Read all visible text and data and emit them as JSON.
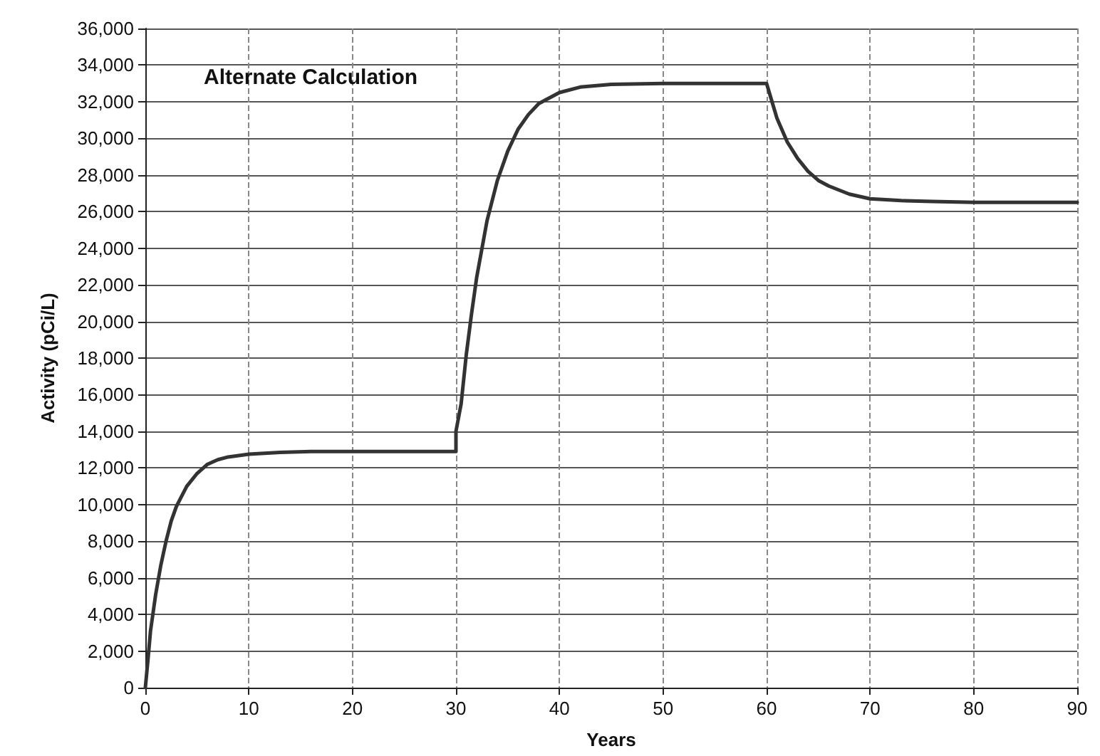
{
  "chart_data": {
    "type": "line",
    "title": "Alternate Calculation",
    "xlabel": "Years",
    "ylabel": "Activity (pCi/L)",
    "x": [
      0,
      0.25,
      0.5,
      1,
      1.5,
      2,
      2.5,
      3,
      4,
      5,
      6,
      7,
      8,
      10,
      13,
      16,
      20,
      25,
      30,
      30,
      30.5,
      31,
      31.5,
      32,
      33,
      34,
      35,
      36,
      37,
      38,
      40,
      42,
      45,
      50,
      55,
      60,
      61,
      62,
      63,
      64,
      65,
      66,
      68,
      70,
      73,
      76,
      80,
      85,
      90
    ],
    "series": [
      {
        "color": "#333333",
        "values": [
          0,
          1500,
          3100,
          5100,
          6700,
          8000,
          9100,
          9900,
          11000,
          11700,
          12200,
          12450,
          12600,
          12750,
          12850,
          12900,
          12900,
          12900,
          12900,
          14000,
          15500,
          18200,
          20400,
          22400,
          25500,
          27700,
          29300,
          30500,
          31300,
          31900,
          32500,
          32800,
          32950,
          33000,
          33000,
          33000,
          31100,
          29800,
          28900,
          28200,
          27700,
          27400,
          26950,
          26700,
          26600,
          26550,
          26500,
          26500,
          26500
        ]
      }
    ],
    "xlim": [
      0,
      90
    ],
    "xticks": [
      0,
      10,
      20,
      30,
      40,
      50,
      60,
      70,
      80,
      90
    ],
    "ylim": [
      0,
      36000
    ],
    "yticks": [
      0,
      {
        "value": 2000,
        "label": "2,000"
      },
      {
        "value": 4000,
        "label": "4,000"
      },
      {
        "value": 6000,
        "label": "6,000"
      },
      {
        "value": 8000,
        "label": "8,000"
      },
      {
        "value": 10000,
        "label": "10,000"
      },
      {
        "value": 12000,
        "label": "12,000"
      },
      {
        "value": 14000,
        "label": "14,000"
      },
      {
        "value": 16000,
        "label": "16,000"
      },
      {
        "value": 18000,
        "label": "18,000"
      },
      {
        "value": 20000,
        "label": "20,000"
      },
      {
        "value": 22000,
        "label": "22,000"
      },
      {
        "value": 24000,
        "label": "24,000"
      },
      {
        "value": 26000,
        "label": "26,000"
      },
      {
        "value": 28000,
        "label": "28,000"
      },
      {
        "value": 30000,
        "label": "30,000"
      },
      {
        "value": 32000,
        "label": "32,000"
      },
      {
        "value": 34000,
        "label": "34,000"
      },
      {
        "value": 36000,
        "label": "36,000"
      }
    ],
    "grid": true,
    "marker": "none",
    "line_style": "solid"
  }
}
